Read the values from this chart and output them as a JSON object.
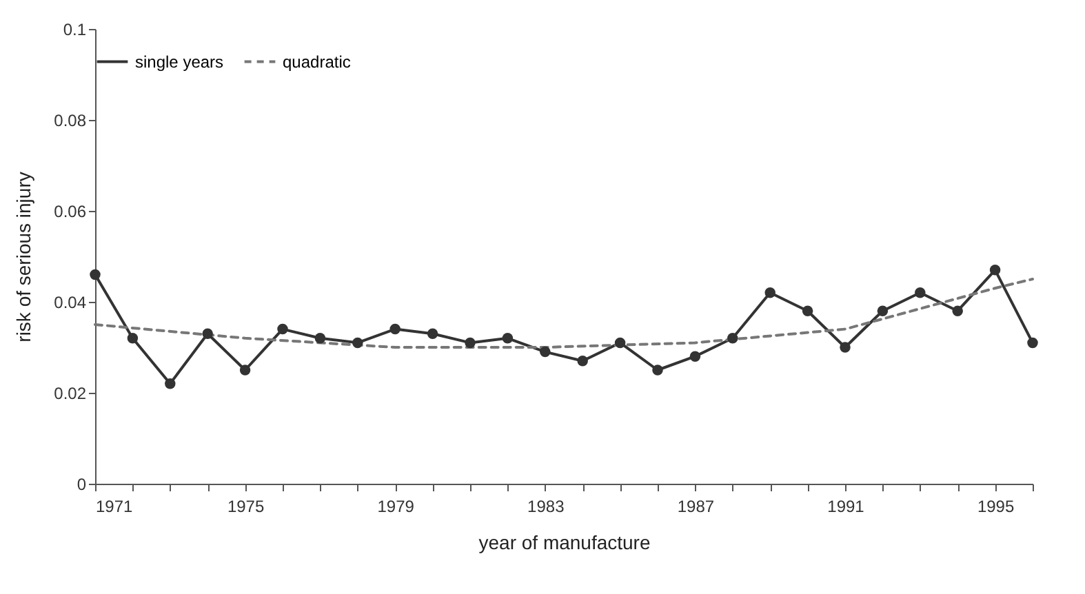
{
  "chart_data": {
    "type": "line",
    "xlabel": "year of manufacture",
    "ylabel": "risk of serious injury",
    "x": [
      1971,
      1972,
      1973,
      1974,
      1975,
      1976,
      1977,
      1978,
      1979,
      1980,
      1981,
      1982,
      1983,
      1984,
      1985,
      1986,
      1987,
      1988,
      1989,
      1990,
      1991,
      1992,
      1993,
      1994,
      1995,
      1996
    ],
    "series": [
      {
        "name": "single years",
        "color": "#333333",
        "marker": "circle",
        "line_style": "solid",
        "values": [
          0.046,
          0.032,
          0.022,
          0.033,
          0.025,
          0.034,
          0.032,
          0.031,
          0.034,
          0.033,
          0.031,
          0.032,
          0.029,
          0.027,
          0.031,
          0.025,
          0.028,
          0.032,
          0.042,
          0.038,
          0.03,
          0.038,
          0.042,
          0.038,
          0.047,
          0.031
        ]
      },
      {
        "name": "quadratic",
        "color": "#777777",
        "marker": "none",
        "line_style": "dashed",
        "x": [
          1971,
          1975,
          1979,
          1983,
          1987,
          1991,
          1995,
          1996
        ],
        "values": [
          0.035,
          0.032,
          0.03,
          0.03,
          0.031,
          0.034,
          0.043,
          0.045
        ]
      }
    ],
    "xlim": [
      1971,
      1996
    ],
    "xticks": [
      1971,
      {
        "value": 1972,
        "label": null
      },
      {
        "value": 1973,
        "label": null
      },
      {
        "value": 1974,
        "label": null
      },
      1975,
      {
        "value": 1976,
        "label": null
      },
      {
        "value": 1977,
        "label": null
      },
      {
        "value": 1978,
        "label": null
      },
      1979,
      {
        "value": 1980,
        "label": null
      },
      {
        "value": 1981,
        "label": null
      },
      {
        "value": 1982,
        "label": null
      },
      1983,
      {
        "value": 1984,
        "label": null
      },
      {
        "value": 1985,
        "label": null
      },
      {
        "value": 1986,
        "label": null
      },
      1987,
      {
        "value": 1988,
        "label": null
      },
      {
        "value": 1989,
        "label": null
      },
      {
        "value": 1990,
        "label": null
      },
      1991,
      {
        "value": 1992,
        "label": null
      },
      {
        "value": 1993,
        "label": null
      },
      {
        "value": 1994,
        "label": null
      },
      1995,
      {
        "value": 1996,
        "label": null
      }
    ],
    "ylim": [
      0,
      0.1
    ],
    "yticks": [
      0,
      0.02,
      0.04,
      0.06,
      0.08,
      0.1
    ],
    "grid": false,
    "legend": "top"
  }
}
